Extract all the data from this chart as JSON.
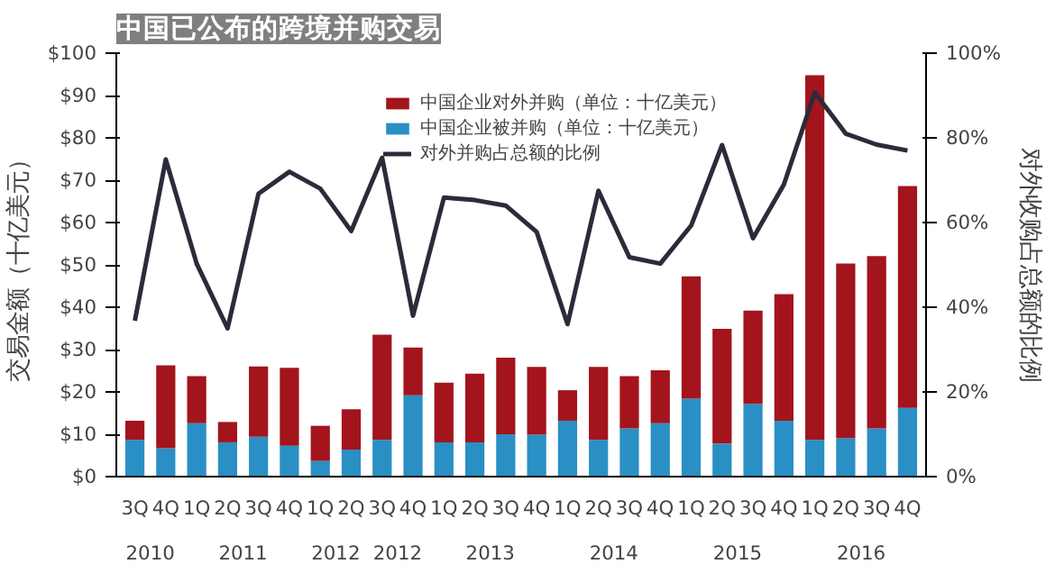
{
  "chart_data": {
    "type": "bar",
    "stacked": true,
    "title": "中国已公布的跨境并购交易",
    "ylabel": "交易金额（十亿美元）",
    "y2label": "对外收购占总额的比例",
    "categories": [
      "3Q",
      "4Q",
      "1Q",
      "2Q",
      "3Q",
      "4Q",
      "1Q",
      "2Q",
      "3Q",
      "4Q",
      "1Q",
      "2Q",
      "3Q",
      "4Q",
      "1Q",
      "2Q",
      "3Q",
      "4Q",
      "1Q",
      "2Q",
      "3Q",
      "4Q",
      "1Q",
      "2Q",
      "3Q",
      "4Q"
    ],
    "annotations": [
      "2010",
      "2011",
      "2012",
      "2012",
      "2013",
      "2014",
      "2015",
      "2016"
    ],
    "series": [
      {
        "name": "中国企业被并购（单位：十亿美元）",
        "color": "#2a8fc4",
        "values": [
          8.7,
          6.7,
          12.6,
          8.1,
          9.4,
          7.3,
          3.7,
          6.4,
          8.7,
          19.2,
          8.1,
          8.1,
          10,
          9.9,
          13.2,
          8.7,
          11.4,
          12.6,
          18.4,
          7.8,
          17.2,
          13.2,
          8.7,
          9.1,
          11.4,
          16.2
        ]
      },
      {
        "name": "中国企业对外并购（单位：十亿美元）",
        "color": "#a3141c",
        "values": [
          4.5,
          19.6,
          11.1,
          4.8,
          16.6,
          18.4,
          8.3,
          9.5,
          24.8,
          11.3,
          14.1,
          16.2,
          18.1,
          16,
          7.2,
          17.2,
          12.3,
          12.5,
          28.9,
          27.1,
          22,
          29.9,
          86.1,
          41.2,
          40.7,
          52.4
        ]
      },
      {
        "name": "对外并购占总额的比例",
        "type": "line",
        "axis": "y2",
        "color": "#2b2b3a",
        "values": [
          36.8,
          74.9,
          50.3,
          35,
          66.8,
          72,
          68,
          58,
          75.3,
          38,
          65.9,
          65.3,
          64,
          57.8,
          36,
          67.5,
          51.8,
          50.3,
          59.3,
          78.3,
          56.3,
          69,
          90.7,
          81,
          78.4,
          77
        ]
      }
    ],
    "ylim": [
      0,
      100
    ],
    "yticks": [
      {
        "value": 0,
        "label": "$0"
      },
      {
        "value": 10,
        "label": "$10"
      },
      {
        "value": 20,
        "label": "$20"
      },
      {
        "value": 30,
        "label": "$30"
      },
      {
        "value": 40,
        "label": "$40"
      },
      {
        "value": 50,
        "label": "$50"
      },
      {
        "value": 60,
        "label": "$60"
      },
      {
        "value": 70,
        "label": "$70"
      },
      {
        "value": 80,
        "label": "$80"
      },
      {
        "value": 90,
        "label": "$90"
      },
      {
        "value": 100,
        "label": "$100"
      }
    ],
    "y2lim": [
      0,
      100
    ],
    "y2ticks": [
      {
        "value": 0,
        "label": "0%"
      },
      {
        "value": 20,
        "label": "20%"
      },
      {
        "value": 40,
        "label": "40%"
      },
      {
        "value": 60,
        "label": "60%"
      },
      {
        "value": 80,
        "label": "80%"
      },
      {
        "value": 100,
        "label": "100%"
      }
    ],
    "legend": "top right",
    "grid": false
  }
}
